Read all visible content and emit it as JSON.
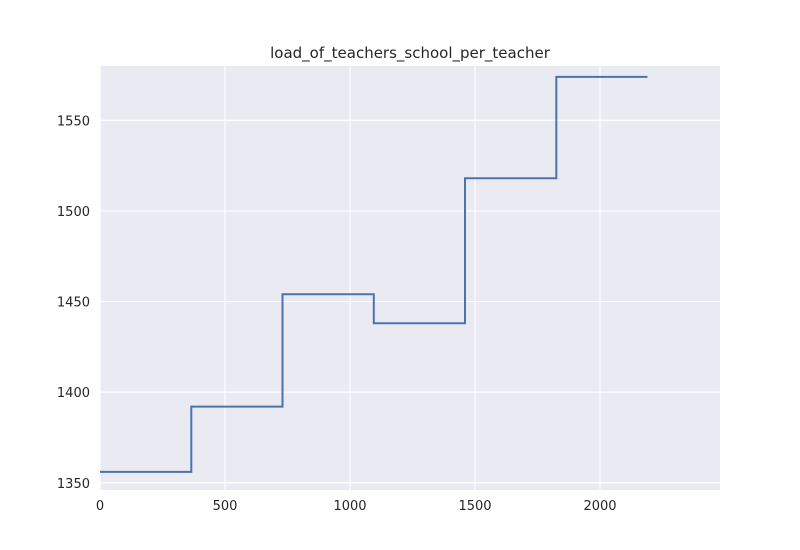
{
  "chart_data": {
    "type": "line",
    "title": "load_of_teachers_school_per_teacher",
    "xlabel": "",
    "ylabel": "",
    "xlim": [
      0,
      2480
    ],
    "ylim": [
      1346,
      1580
    ],
    "xticks": [
      0,
      500,
      1000,
      1500,
      2000
    ],
    "yticks": [
      1350,
      1400,
      1450,
      1500,
      1550
    ],
    "grid": true,
    "legend": "none",
    "line_color": "#4c72b0",
    "background_color": "#eaeaf2",
    "step": true,
    "series": [
      {
        "x": [
          0,
          365,
          365,
          730,
          730,
          1095,
          1095,
          1460,
          1460,
          1825,
          1825,
          2190
        ],
        "values": [
          1356,
          1356,
          1392,
          1392,
          1454,
          1454,
          1438,
          1438,
          1518,
          1518,
          1574,
          1574
        ]
      }
    ]
  }
}
